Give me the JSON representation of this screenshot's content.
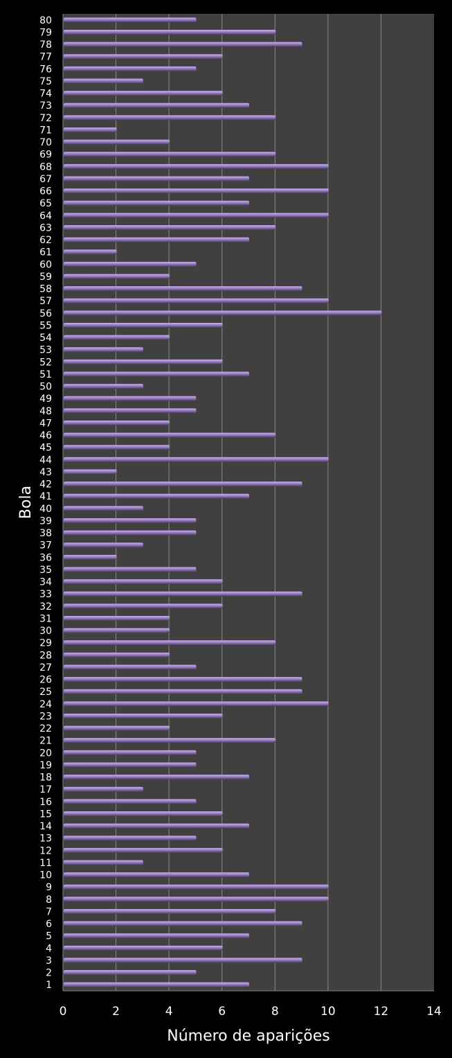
{
  "chart_data": {
    "type": "bar",
    "orientation": "horizontal",
    "title": "",
    "xlabel": "Número de aparições",
    "ylabel": "Bola",
    "xlim": [
      0,
      14
    ],
    "xticks": [
      0,
      2,
      4,
      6,
      8,
      10,
      12,
      14
    ],
    "grid": "vertical",
    "legend": "none",
    "colors": {
      "background": "#000000",
      "plot_area": "#404040",
      "bar": "#9b7fc4",
      "bar_shadow": "#4a3a66",
      "grid": "#8a8a8a"
    },
    "categories": [
      "1",
      "2",
      "3",
      "4",
      "5",
      "6",
      "7",
      "8",
      "9",
      "10",
      "11",
      "12",
      "13",
      "14",
      "15",
      "16",
      "17",
      "18",
      "19",
      "20",
      "21",
      "22",
      "23",
      "24",
      "25",
      "26",
      "27",
      "28",
      "29",
      "30",
      "31",
      "32",
      "33",
      "34",
      "35",
      "36",
      "37",
      "38",
      "39",
      "40",
      "41",
      "42",
      "43",
      "44",
      "45",
      "46",
      "47",
      "48",
      "49",
      "50",
      "51",
      "52",
      "53",
      "54",
      "55",
      "56",
      "57",
      "58",
      "59",
      "60",
      "61",
      "62",
      "63",
      "64",
      "65",
      "66",
      "67",
      "68",
      "69",
      "70",
      "71",
      "72",
      "73",
      "74",
      "75",
      "76",
      "77",
      "78",
      "79",
      "80"
    ],
    "values": [
      7,
      5,
      9,
      6,
      7,
      9,
      8,
      10,
      10,
      7,
      3,
      6,
      5,
      7,
      6,
      5,
      3,
      7,
      5,
      5,
      8,
      4,
      6,
      10,
      9,
      9,
      5,
      4,
      8,
      4,
      4,
      6,
      9,
      6,
      5,
      2,
      3,
      5,
      5,
      3,
      7,
      9,
      2,
      10,
      4,
      8,
      4,
      5,
      5,
      3,
      7,
      6,
      3,
      4,
      6,
      12,
      10,
      9,
      4,
      5,
      2,
      7,
      8,
      10,
      7,
      10,
      7,
      10,
      8,
      4,
      2,
      8,
      7,
      6,
      3,
      5,
      6,
      9,
      8,
      5
    ]
  }
}
